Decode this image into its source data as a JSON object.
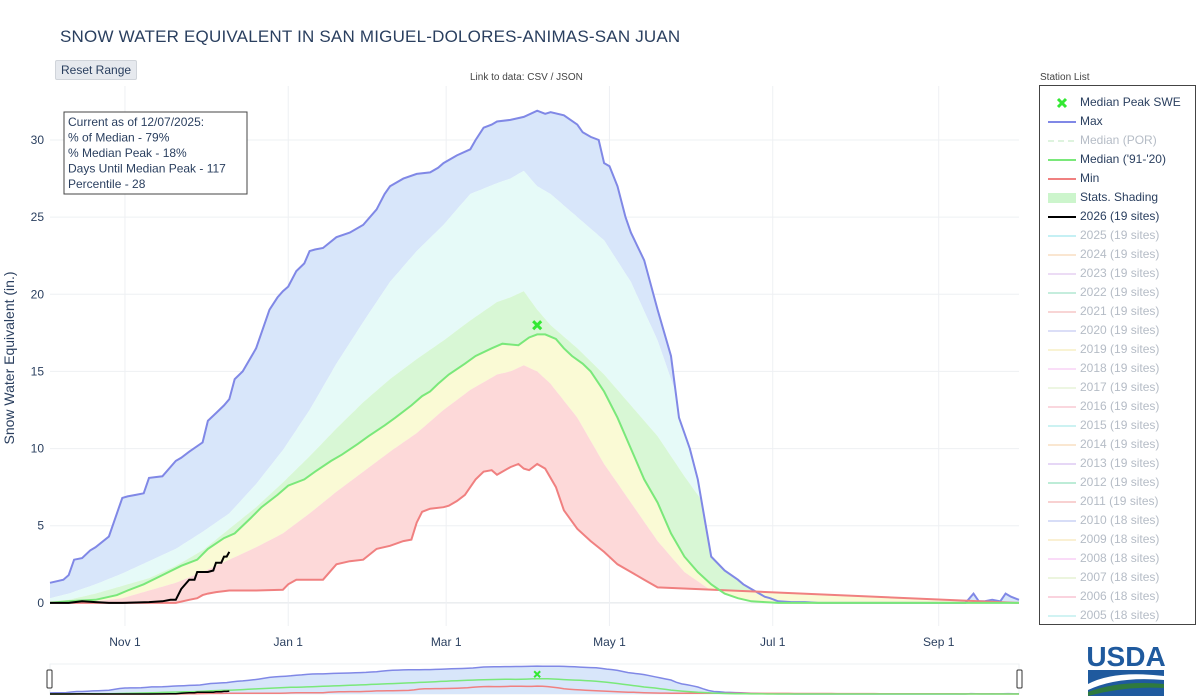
{
  "title": "SNOW WATER EQUIVALENT IN SAN MIGUEL-DOLORES-ANIMAS-SAN JUAN",
  "reset_label": "Reset Range",
  "data_links": {
    "prefix": "Link to data: ",
    "csv": "CSV",
    "sep": " / ",
    "json": "JSON"
  },
  "station_list_label": "Station List",
  "logo_text": "USDA",
  "annotation": [
    "Current as of 12/07/2025:",
    "% of Median - 79%",
    "% Median Peak - 18%",
    "Days Until Median Peak - 117",
    "Percentile - 28"
  ],
  "legend": [
    {
      "label": "Median Peak SWE",
      "sym": "marker",
      "color": "#33e833",
      "on": true
    },
    {
      "label": "Max",
      "sym": "line",
      "color": "#8088e6",
      "on": true
    },
    {
      "label": "Median (POR)",
      "sym": "dash",
      "color": "#b8e6b8",
      "on": false
    },
    {
      "label": "Median ('91-'20)",
      "sym": "line",
      "color": "#7ae87a",
      "on": true
    },
    {
      "label": "Min",
      "sym": "line",
      "color": "#f08080",
      "on": true
    },
    {
      "label": "Stats. Shading",
      "sym": "fill",
      "color": "#ccf5cc",
      "on": true
    },
    {
      "label": "2026 (19 sites)",
      "sym": "line",
      "color": "#000000",
      "on": true
    },
    {
      "label": "2025 (19 sites)",
      "sym": "line",
      "color": "#7fdfe8",
      "on": false
    },
    {
      "label": "2024 (19 sites)",
      "sym": "line",
      "color": "#f5c99a",
      "on": false
    },
    {
      "label": "2023 (19 sites)",
      "sym": "line",
      "color": "#d6b3ea",
      "on": false
    },
    {
      "label": "2022 (19 sites)",
      "sym": "line",
      "color": "#7fd9b4",
      "on": false
    },
    {
      "label": "2021 (19 sites)",
      "sym": "line",
      "color": "#f0a3a3",
      "on": false
    },
    {
      "label": "2020 (19 sites)",
      "sym": "line",
      "color": "#b0b8ee",
      "on": false
    },
    {
      "label": "2019 (19 sites)",
      "sym": "line",
      "color": "#f3e6a0",
      "on": false
    },
    {
      "label": "2018 (19 sites)",
      "sym": "line",
      "color": "#f5b8f0",
      "on": false
    },
    {
      "label": "2017 (19 sites)",
      "sym": "line",
      "color": "#d9ecc0",
      "on": false
    },
    {
      "label": "2016 (19 sites)",
      "sym": "line",
      "color": "#f5a8b8",
      "on": false
    },
    {
      "label": "2015 (19 sites)",
      "sym": "line",
      "color": "#8fe3e3",
      "on": false
    },
    {
      "label": "2014 (19 sites)",
      "sym": "line",
      "color": "#f5cc9a",
      "on": false
    },
    {
      "label": "2013 (19 sites)",
      "sym": "line",
      "color": "#c9a8ec",
      "on": false
    },
    {
      "label": "2012 (19 sites)",
      "sym": "line",
      "color": "#6fd6a8",
      "on": false
    },
    {
      "label": "2011 (19 sites)",
      "sym": "line",
      "color": "#f09a9a",
      "on": false
    },
    {
      "label": "2010 (18 sites)",
      "sym": "line",
      "color": "#a8b4ee",
      "on": false
    },
    {
      "label": "2009 (18 sites)",
      "sym": "line",
      "color": "#f5e0a0",
      "on": false
    },
    {
      "label": "2008 (18 sites)",
      "sym": "line",
      "color": "#f5b0f0",
      "on": false
    },
    {
      "label": "2007 (18 sites)",
      "sym": "line",
      "color": "#d6eab8",
      "on": false
    },
    {
      "label": "2006 (18 sites)",
      "sym": "line",
      "color": "#f5a0b8",
      "on": false
    },
    {
      "label": "2005 (18 sites)",
      "sym": "line",
      "color": "#9ae6e6",
      "on": false
    }
  ],
  "colors": {
    "max_fill": "#d8e6fa",
    "q90_fill": "#e6faf8",
    "q70_fill": "#d8f7d5",
    "q50_fill": "#fafad5",
    "min_fill": "#fdd9d9",
    "max_line": "#8088e6",
    "median_line": "#7ae87a",
    "min_line": "#f08080",
    "current_line": "#000000",
    "marker": "#33e833",
    "logo": "#1f5a9e",
    "logo_green": "#2f7a3e"
  },
  "chart_data": {
    "type": "area",
    "xlabel": "",
    "ylabel": "Snow Water Equivalent (in.)",
    "x_tick_labels": [
      "Nov 1",
      "Jan 1",
      "Mar 1",
      "May 1",
      "Jul 1",
      "Sep 1"
    ],
    "x_tick_days": [
      31,
      92,
      151,
      212,
      273,
      335
    ],
    "y_ticks": [
      0,
      5,
      10,
      15,
      20,
      25,
      30
    ],
    "xlim_days": [
      3,
      365
    ],
    "ylim": [
      -1.5,
      33.5
    ],
    "x_unit": "days since Oct 1",
    "grid": true,
    "series": [
      {
        "name": "Max",
        "x": [
          3,
          8,
          10,
          12,
          15,
          18,
          20,
          25,
          28,
          30,
          32,
          35,
          38,
          40,
          45,
          50,
          52,
          55,
          60,
          62,
          65,
          68,
          70,
          72,
          75,
          80,
          85,
          88,
          90,
          92,
          95,
          98,
          100,
          102,
          105,
          110,
          115,
          120,
          125,
          128,
          130,
          135,
          140,
          145,
          148,
          150,
          155,
          160,
          162,
          165,
          168,
          170,
          175,
          180,
          185,
          188,
          190,
          195,
          200,
          202,
          205,
          208,
          210,
          212,
          215,
          218,
          220,
          225,
          230,
          235,
          238,
          240,
          242,
          245,
          248,
          250,
          255,
          260,
          262,
          265,
          268,
          270,
          272,
          275,
          280,
          285,
          290,
          300,
          310,
          320,
          330,
          335,
          340,
          345,
          348,
          350,
          352,
          355,
          358,
          360,
          362,
          365
        ],
        "y": [
          1.3,
          1.5,
          1.8,
          2.8,
          2.9,
          3.4,
          3.6,
          4.3,
          5.8,
          6.8,
          6.9,
          7.0,
          7.1,
          8.1,
          8.2,
          9.2,
          9.4,
          9.8,
          10.4,
          11.8,
          12.3,
          12.8,
          13.2,
          14.5,
          15.0,
          16.5,
          19.0,
          19.8,
          20.2,
          20.5,
          21.5,
          22.0,
          22.8,
          22.9,
          23.0,
          23.7,
          24.0,
          24.5,
          25.5,
          26.5,
          27.0,
          27.5,
          27.8,
          27.9,
          28.2,
          28.5,
          29.0,
          29.4,
          30.0,
          30.8,
          31.0,
          31.2,
          31.3,
          31.5,
          31.9,
          31.7,
          31.8,
          31.6,
          31.0,
          30.5,
          30.2,
          30.0,
          28.5,
          28.3,
          27.0,
          25.0,
          24.0,
          22.2,
          19.0,
          16.0,
          12.0,
          11.0,
          10.0,
          8.0,
          5.0,
          3.0,
          2.1,
          1.5,
          1.2,
          0.9,
          0.6,
          0.4,
          0.3,
          0.1,
          0.05,
          0.05,
          0.0,
          0.0,
          0.0,
          0.0,
          0.0,
          0.0,
          0.0,
          0.0,
          0.6,
          0.1,
          0.1,
          0.2,
          0.1,
          0.6,
          0.4,
          0.2
        ]
      },
      {
        "name": "Median ('91-'20)",
        "x": [
          3,
          10,
          20,
          28,
          32,
          38,
          45,
          52,
          58,
          62,
          68,
          72,
          78,
          82,
          88,
          92,
          98,
          102,
          108,
          112,
          118,
          122,
          128,
          132,
          138,
          142,
          145,
          148,
          152,
          158,
          162,
          168,
          172,
          178,
          182,
          185,
          188,
          192,
          195,
          198,
          202,
          205,
          210,
          215,
          220,
          225,
          230,
          235,
          240,
          245,
          250,
          255,
          260,
          265,
          270,
          275,
          280,
          300,
          330,
          365
        ],
        "y": [
          0.0,
          0.1,
          0.2,
          0.5,
          0.8,
          1.2,
          1.8,
          2.4,
          2.8,
          3.5,
          4.2,
          4.5,
          5.5,
          6.2,
          7.0,
          7.6,
          8.0,
          8.5,
          9.2,
          9.6,
          10.3,
          10.8,
          11.5,
          12.0,
          12.8,
          13.4,
          13.7,
          14.2,
          14.8,
          15.5,
          16.0,
          16.5,
          16.8,
          16.7,
          17.2,
          17.4,
          17.4,
          17.1,
          16.5,
          16.0,
          15.5,
          15.0,
          13.7,
          12.0,
          10.0,
          8.0,
          6.5,
          4.5,
          3.0,
          2.0,
          1.2,
          0.6,
          0.3,
          0.1,
          0.05,
          0.0,
          0.0,
          0.0,
          0.0,
          0.0
        ]
      },
      {
        "name": "Min",
        "x": [
          3,
          50,
          55,
          58,
          60,
          62,
          65,
          70,
          75,
          80,
          90,
          92,
          95,
          98,
          100,
          105,
          110,
          115,
          120,
          125,
          130,
          135,
          138,
          140,
          142,
          145,
          150,
          152,
          155,
          158,
          160,
          162,
          165,
          168,
          170,
          175,
          178,
          180,
          182,
          185,
          188,
          192,
          195,
          200,
          205,
          210,
          215,
          220,
          225,
          230,
          365
        ],
        "y": [
          0.0,
          0.0,
          0.2,
          0.3,
          0.5,
          0.6,
          0.7,
          0.8,
          0.8,
          0.8,
          0.85,
          1.2,
          1.5,
          1.5,
          1.5,
          1.5,
          2.5,
          2.7,
          2.8,
          3.5,
          3.7,
          4.0,
          4.1,
          5.2,
          5.9,
          6.1,
          6.2,
          6.3,
          6.6,
          7.0,
          7.5,
          8.0,
          8.5,
          8.6,
          8.3,
          8.8,
          9.0,
          8.7,
          8.6,
          9.0,
          8.7,
          7.5,
          6.0,
          4.8,
          4.0,
          3.3,
          2.5,
          2.0,
          1.5,
          1.0,
          0.0
        ]
      },
      {
        "name": "2026 (19 sites)",
        "x": [
          3,
          10,
          15,
          20,
          25,
          30,
          40,
          45,
          48,
          50,
          52,
          55,
          57,
          58,
          60,
          62,
          64,
          65,
          67,
          68,
          69,
          70
        ],
        "y": [
          0.0,
          0.0,
          0.1,
          0.05,
          0.0,
          0.0,
          0.05,
          0.1,
          0.2,
          0.2,
          0.9,
          1.5,
          1.5,
          2.0,
          2.0,
          2.0,
          2.1,
          2.6,
          2.6,
          3.0,
          3.0,
          3.3
        ]
      }
    ],
    "bands": {
      "x": [
        3,
        10,
        20,
        30,
        40,
        50,
        60,
        70,
        80,
        90,
        100,
        110,
        120,
        130,
        140,
        150,
        160,
        170,
        175,
        180,
        185,
        190,
        200,
        210,
        220,
        230,
        240,
        250,
        260,
        270,
        280,
        290,
        300,
        365
      ],
      "upper_90": [
        0.3,
        0.6,
        1.2,
        1.9,
        2.7,
        3.5,
        4.6,
        5.8,
        7.7,
        9.9,
        12.5,
        15.5,
        18.2,
        20.8,
        22.8,
        24.5,
        26.5,
        27.2,
        27.5,
        28.0,
        27.0,
        26.5,
        25.0,
        23.5,
        20.8,
        17.0,
        12.0,
        8.0,
        5.2,
        3.0,
        1.6,
        0.6,
        0.2,
        0.0
      ],
      "upper_70": [
        0.1,
        0.2,
        0.6,
        1.1,
        1.6,
        2.4,
        3.4,
        4.8,
        6.2,
        7.8,
        9.5,
        11.3,
        13.0,
        14.5,
        15.8,
        17.0,
        18.3,
        19.5,
        19.8,
        20.2,
        19.0,
        18.0,
        16.5,
        14.8,
        12.8,
        10.8,
        8.2,
        5.8,
        3.5,
        1.8,
        0.8,
        0.2,
        0.0,
        0.0
      ],
      "lower_30": [
        0.0,
        0.0,
        0.1,
        0.3,
        0.8,
        1.3,
        2.0,
        2.8,
        3.6,
        4.5,
        5.8,
        7.2,
        8.5,
        9.8,
        11.0,
        12.5,
        13.8,
        14.8,
        15.0,
        15.4,
        15.0,
        14.2,
        12.0,
        9.0,
        6.5,
        4.0,
        2.0,
        0.8,
        0.3,
        0.1,
        0.0,
        0.0,
        0.0,
        0.0
      ]
    },
    "median_peak": {
      "x": 185,
      "y": 18.0
    }
  }
}
